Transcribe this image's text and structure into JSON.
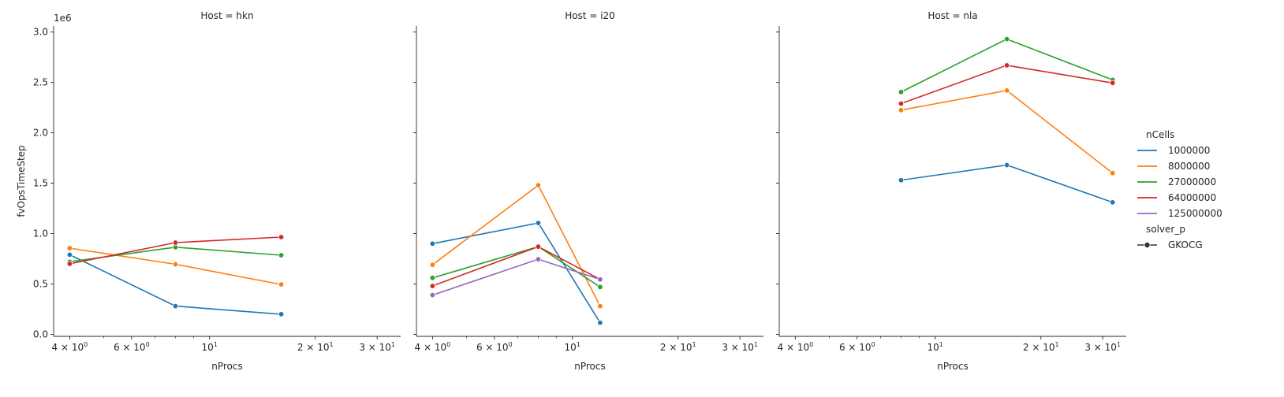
{
  "chart_data": {
    "type": "line",
    "ylabel": "fvOpsTimeStep",
    "xlabel": "nProcs",
    "y_offset_label": "1e6",
    "x_scale": "log",
    "xlim": [
      3.6,
      35
    ],
    "ylim": [
      -20000,
      3060000
    ],
    "y_ticks": [
      {
        "value": 0,
        "label": "0.0"
      },
      {
        "value": 500000,
        "label": "0.5"
      },
      {
        "value": 1000000,
        "label": "1.0"
      },
      {
        "value": 1500000,
        "label": "1.5"
      },
      {
        "value": 2000000,
        "label": "2.0"
      },
      {
        "value": 2500000,
        "label": "2.5"
      },
      {
        "value": 3000000,
        "label": "3.0"
      }
    ],
    "x_ticks": [
      {
        "value": 4,
        "label": "4 × 10⁰",
        "main": "4 × 10",
        "exp": "0"
      },
      {
        "value": 6,
        "label": "6 × 10⁰",
        "main": "6 × 10",
        "exp": "0"
      },
      {
        "value": 10,
        "label": "10¹",
        "main": "10",
        "exp": "1"
      },
      {
        "value": 20,
        "label": "2 × 10¹",
        "main": "2 × 10",
        "exp": "1"
      },
      {
        "value": 30,
        "label": "3 × 10¹",
        "main": "3 × 10",
        "exp": "1"
      }
    ],
    "x_minor_ticks": [
      5,
      7,
      8,
      9
    ],
    "legend": {
      "title": "nCells",
      "entries": [
        {
          "label": "1000000",
          "color": "#1f77b4"
        },
        {
          "label": "8000000",
          "color": "#ff7f0e"
        },
        {
          "label": "27000000",
          "color": "#2ca02c"
        },
        {
          "label": "64000000",
          "color": "#d62728"
        },
        {
          "label": "125000000",
          "color": "#9467bd"
        }
      ],
      "style_title": "solver_p",
      "style_entries": [
        {
          "label": "GKOCG",
          "color": "#333333"
        }
      ],
      "placement": "right"
    },
    "panels": [
      {
        "title": "Host = hkn",
        "series": [
          {
            "name": "1000000",
            "color": "#1f77b4",
            "x": [
              4,
              8,
              16
            ],
            "y": [
              790000,
              280000,
              200000
            ]
          },
          {
            "name": "8000000",
            "color": "#ff7f0e",
            "x": [
              4,
              8,
              16
            ],
            "y": [
              855000,
              695000,
              495000
            ]
          },
          {
            "name": "27000000",
            "color": "#2ca02c",
            "x": [
              4,
              8,
              16
            ],
            "y": [
              720000,
              865000,
              785000
            ]
          },
          {
            "name": "64000000",
            "color": "#d62728",
            "x": [
              4,
              8,
              16
            ],
            "y": [
              700000,
              910000,
              965000
            ]
          }
        ]
      },
      {
        "title": "Host = i20",
        "series": [
          {
            "name": "1000000",
            "color": "#1f77b4",
            "x": [
              4,
              8,
              12
            ],
            "y": [
              900000,
              1105000,
              115000
            ]
          },
          {
            "name": "8000000",
            "color": "#ff7f0e",
            "x": [
              4,
              8,
              12
            ],
            "y": [
              690000,
              1480000,
              280000
            ]
          },
          {
            "name": "27000000",
            "color": "#2ca02c",
            "x": [
              4,
              8,
              12
            ],
            "y": [
              560000,
              870000,
              470000
            ]
          },
          {
            "name": "64000000",
            "color": "#d62728",
            "x": [
              4,
              8,
              12
            ],
            "y": [
              480000,
              870000,
              545000
            ]
          },
          {
            "name": "125000000",
            "color": "#9467bd",
            "x": [
              4,
              8,
              12
            ],
            "y": [
              390000,
              745000,
              545000
            ]
          }
        ]
      },
      {
        "title": "Host = nla",
        "series": [
          {
            "name": "1000000",
            "color": "#1f77b4",
            "x": [
              8,
              16,
              32
            ],
            "y": [
              1530000,
              1680000,
              1310000
            ]
          },
          {
            "name": "8000000",
            "color": "#ff7f0e",
            "x": [
              8,
              16,
              32
            ],
            "y": [
              2225000,
              2420000,
              1600000
            ]
          },
          {
            "name": "27000000",
            "color": "#2ca02c",
            "x": [
              8,
              16,
              32
            ],
            "y": [
              2405000,
              2930000,
              2525000
            ]
          },
          {
            "name": "64000000",
            "color": "#d62728",
            "x": [
              8,
              16,
              32
            ],
            "y": [
              2290000,
              2670000,
              2495000
            ]
          }
        ]
      }
    ]
  }
}
